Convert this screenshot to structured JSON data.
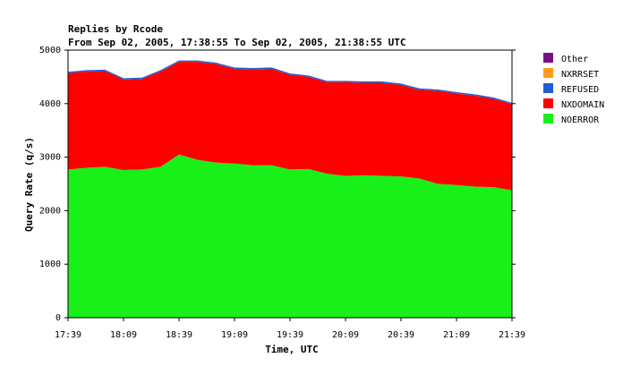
{
  "chart_data": {
    "type": "area",
    "title": "Replies by Rcode",
    "subtitle": "From Sep 02, 2005, 17:38:55 To Sep 02, 2005, 21:38:55 UTC",
    "xlabel": "Time, UTC",
    "ylabel": "Query Rate (q/s)",
    "ylim": [
      0,
      5000
    ],
    "yticks": [
      0,
      1000,
      2000,
      3000,
      4000,
      5000
    ],
    "xlim": [
      "17:39",
      "21:39"
    ],
    "xticks": [
      "17:39",
      "18:09",
      "18:39",
      "19:09",
      "19:39",
      "20:09",
      "20:39",
      "21:09",
      "21:39"
    ],
    "stacked": true,
    "legend_position": "right",
    "grid": false,
    "x": [
      "17:39",
      "17:49",
      "17:59",
      "18:09",
      "18:19",
      "18:29",
      "18:39",
      "18:49",
      "18:59",
      "19:09",
      "19:19",
      "19:29",
      "19:39",
      "19:49",
      "19:59",
      "20:09",
      "20:19",
      "20:29",
      "20:39",
      "20:49",
      "20:59",
      "21:09",
      "21:19",
      "21:29",
      "21:39"
    ],
    "series": [
      {
        "name": "Other",
        "color": "#7b0f8a",
        "values": [
          0,
          0,
          0,
          0,
          0,
          0,
          0,
          0,
          0,
          0,
          0,
          0,
          0,
          0,
          0,
          0,
          0,
          0,
          0,
          0,
          0,
          0,
          0,
          0,
          0
        ]
      },
      {
        "name": "NXRRSET",
        "color": "#ff9a1a",
        "values": [
          0,
          0,
          0,
          0,
          0,
          0,
          0,
          0,
          0,
          0,
          0,
          0,
          0,
          0,
          0,
          0,
          0,
          0,
          0,
          0,
          0,
          0,
          0,
          0,
          0
        ]
      },
      {
        "name": "REFUSED",
        "color": "#1f5fd6",
        "values": [
          25,
          25,
          25,
          25,
          25,
          25,
          25,
          25,
          25,
          25,
          25,
          25,
          25,
          25,
          25,
          25,
          25,
          25,
          25,
          25,
          25,
          25,
          25,
          25,
          25
        ]
      },
      {
        "name": "NXDOMAIN",
        "color": "#ff0000",
        "values": [
          1800,
          1800,
          1790,
          1690,
          1690,
          1780,
          1730,
          1830,
          1840,
          1770,
          1790,
          1800,
          1770,
          1720,
          1710,
          1750,
          1730,
          1740,
          1710,
          1660,
          1740,
          1710,
          1700,
          1650,
          1610
        ]
      },
      {
        "name": "NOERROR",
        "color": "#19f019",
        "values": [
          2770,
          2800,
          2820,
          2760,
          2770,
          2820,
          3050,
          2950,
          2900,
          2880,
          2850,
          2850,
          2770,
          2780,
          2690,
          2650,
          2660,
          2650,
          2640,
          2600,
          2500,
          2480,
          2450,
          2440,
          2380
        ]
      }
    ]
  }
}
